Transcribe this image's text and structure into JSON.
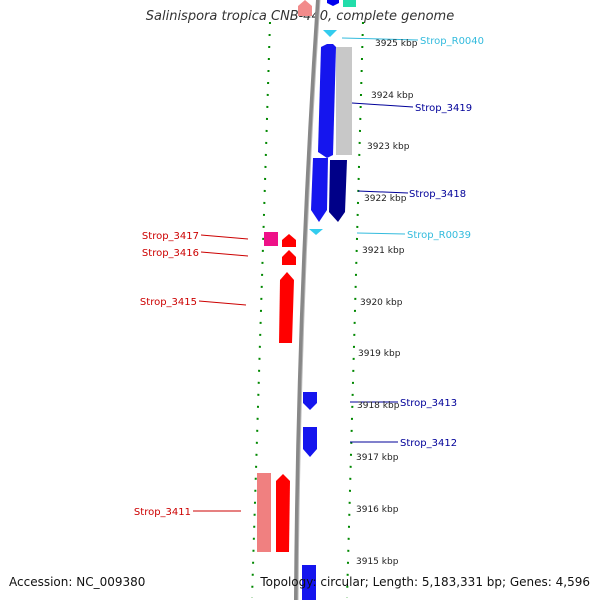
{
  "title": "Salinispora tropica CNB-440, complete genome",
  "footer": {
    "accession": "Accession: NC_009380",
    "summary": "Topology: circular; Length: 5,183,331 bp; Genes: 4,596"
  },
  "colors": {
    "forward_cds": "#ff0000",
    "reverse_cds": "#0000ff",
    "rna": "#33ccee",
    "label_forward": "#cc0000",
    "label_reverse": "#000099",
    "label_rna": "#33bbdd",
    "backbone": "#888888",
    "tick": "#008800"
  },
  "scale_labels": [
    {
      "kbp": 3925,
      "text": "3925 kbp"
    },
    {
      "kbp": 3924,
      "text": "3924 kbp"
    },
    {
      "kbp": 3923,
      "text": "3923 kbp"
    },
    {
      "kbp": 3922,
      "text": "3922 kbp"
    },
    {
      "kbp": 3921,
      "text": "3921 kbp"
    },
    {
      "kbp": 3920,
      "text": "3920 kbp"
    },
    {
      "kbp": 3919,
      "text": "3919 kbp"
    },
    {
      "kbp": 3918,
      "text": "3918 kbp"
    },
    {
      "kbp": 3917,
      "text": "3917 kbp"
    },
    {
      "kbp": 3916,
      "text": "3916 kbp"
    },
    {
      "kbp": 3915,
      "text": "3915 kbp"
    }
  ],
  "gene_labels": [
    {
      "name": "Strop_R0040",
      "type": "rna"
    },
    {
      "name": "Strop_3419",
      "type": "reverse"
    },
    {
      "name": "Strop_3418",
      "type": "reverse"
    },
    {
      "name": "Strop_R0039",
      "type": "rna"
    },
    {
      "name": "Strop_3417",
      "type": "forward"
    },
    {
      "name": "Strop_3416",
      "type": "forward"
    },
    {
      "name": "Strop_3415",
      "type": "forward"
    },
    {
      "name": "Strop_3413",
      "type": "reverse"
    },
    {
      "name": "Strop_3412",
      "type": "reverse"
    },
    {
      "name": "Strop_3411",
      "type": "forward"
    }
  ]
}
